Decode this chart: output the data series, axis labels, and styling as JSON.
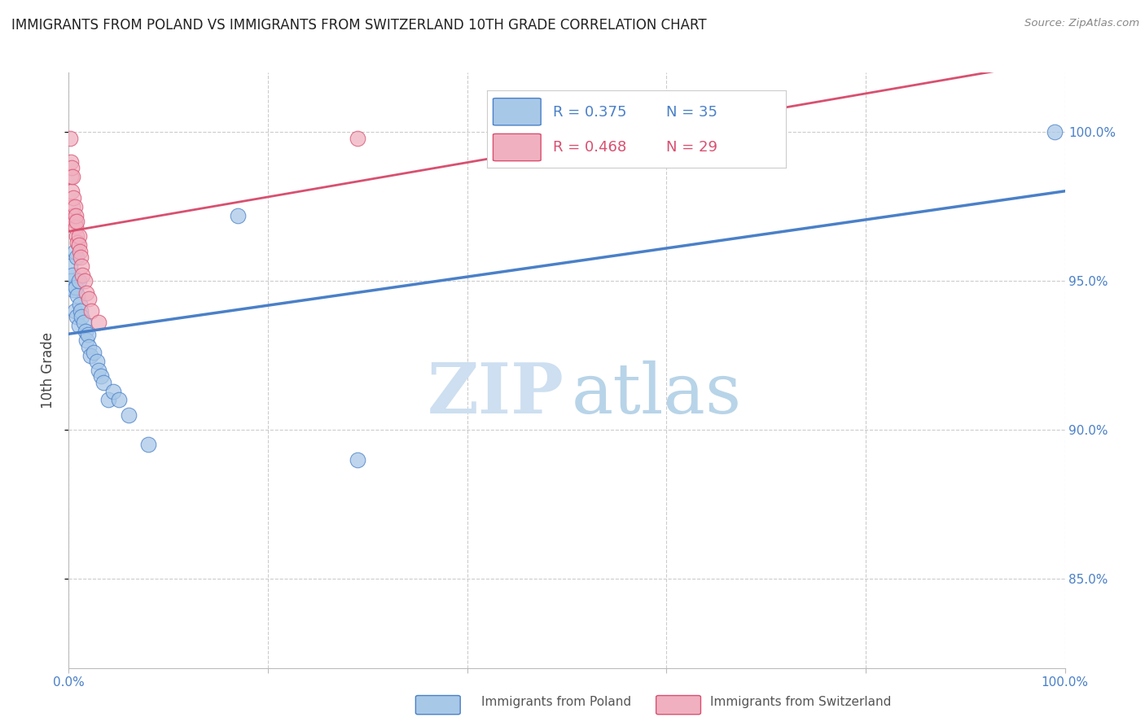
{
  "title": "IMMIGRANTS FROM POLAND VS IMMIGRANTS FROM SWITZERLAND 10TH GRADE CORRELATION CHART",
  "source": "Source: ZipAtlas.com",
  "ylabel": "10th Grade",
  "y_ticks": [
    "100.0%",
    "95.0%",
    "90.0%",
    "85.0%"
  ],
  "y_tick_vals": [
    1.0,
    0.95,
    0.9,
    0.85
  ],
  "x_range": [
    0.0,
    1.0
  ],
  "y_range": [
    0.82,
    1.02
  ],
  "poland_R": 0.375,
  "poland_N": 35,
  "switzerland_R": 0.468,
  "switzerland_N": 29,
  "poland_color": "#a8c8e8",
  "switzerland_color": "#f0b0c0",
  "poland_line_color": "#4a80c8",
  "switzerland_line_color": "#d85070",
  "poland_x": [
    0.001,
    0.002,
    0.003,
    0.004,
    0.005,
    0.006,
    0.006,
    0.007,
    0.008,
    0.008,
    0.009,
    0.01,
    0.01,
    0.011,
    0.012,
    0.013,
    0.015,
    0.017,
    0.018,
    0.019,
    0.02,
    0.022,
    0.025,
    0.028,
    0.03,
    0.032,
    0.035,
    0.04,
    0.045,
    0.05,
    0.06,
    0.08,
    0.17,
    0.29,
    0.99
  ],
  "poland_y": [
    0.955,
    0.95,
    0.948,
    0.952,
    0.947,
    0.96,
    0.94,
    0.948,
    0.938,
    0.958,
    0.945,
    0.95,
    0.935,
    0.942,
    0.94,
    0.938,
    0.936,
    0.933,
    0.93,
    0.932,
    0.928,
    0.925,
    0.926,
    0.923,
    0.92,
    0.918,
    0.916,
    0.91,
    0.913,
    0.91,
    0.905,
    0.895,
    0.972,
    0.89,
    1.0
  ],
  "switzerland_x": [
    0.001,
    0.002,
    0.002,
    0.003,
    0.003,
    0.004,
    0.004,
    0.005,
    0.005,
    0.006,
    0.006,
    0.007,
    0.007,
    0.008,
    0.008,
    0.009,
    0.01,
    0.01,
    0.011,
    0.012,
    0.013,
    0.014,
    0.016,
    0.018,
    0.02,
    0.023,
    0.03,
    0.29,
    0.58
  ],
  "switzerland_y": [
    0.998,
    0.99,
    0.985,
    0.988,
    0.98,
    0.975,
    0.985,
    0.978,
    0.972,
    0.97,
    0.975,
    0.968,
    0.972,
    0.965,
    0.97,
    0.963,
    0.965,
    0.962,
    0.96,
    0.958,
    0.955,
    0.952,
    0.95,
    0.946,
    0.944,
    0.94,
    0.936,
    0.998,
    0.998
  ],
  "watermark_zip": "ZIP",
  "watermark_atlas": "atlas",
  "watermark_color": "#d0e8f8",
  "background_color": "#ffffff"
}
